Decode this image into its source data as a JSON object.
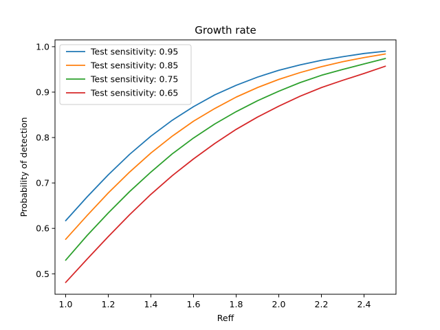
{
  "chart_data": {
    "type": "line",
    "title": "Growth rate",
    "xlabel": "Reff",
    "ylabel": "Probability of detection",
    "xlim": [
      0.95,
      2.55
    ],
    "ylim": [
      0.455,
      1.015
    ],
    "x_ticks": [
      1.0,
      1.2,
      1.4,
      1.6,
      1.8,
      2.0,
      2.2,
      2.4
    ],
    "x_tick_labels": [
      "1.0",
      "1.2",
      "1.4",
      "1.6",
      "1.8",
      "2.0",
      "2.2",
      "2.4"
    ],
    "y_ticks": [
      0.5,
      0.6,
      0.7,
      0.8,
      0.9,
      1.0
    ],
    "y_tick_labels": [
      "0.5",
      "0.6",
      "0.7",
      "0.8",
      "0.9",
      "1.0"
    ],
    "grid": false,
    "legend_position": "top-left",
    "x": [
      1.0,
      1.1,
      1.2,
      1.3,
      1.4,
      1.5,
      1.6,
      1.7,
      1.8,
      1.9,
      2.0,
      2.1,
      2.2,
      2.3,
      2.4,
      2.5
    ],
    "series": [
      {
        "name": "Test sensitivity: 0.95",
        "color": "#1f77b4",
        "values": [
          0.617,
          0.669,
          0.718,
          0.763,
          0.803,
          0.838,
          0.868,
          0.894,
          0.915,
          0.933,
          0.948,
          0.96,
          0.97,
          0.978,
          0.985,
          0.99
        ]
      },
      {
        "name": "Test sensitivity: 0.85",
        "color": "#ff7f0e",
        "values": [
          0.576,
          0.628,
          0.678,
          0.724,
          0.766,
          0.803,
          0.836,
          0.864,
          0.889,
          0.91,
          0.928,
          0.943,
          0.956,
          0.967,
          0.976,
          0.984
        ]
      },
      {
        "name": "Test sensitivity: 0.75",
        "color": "#2ca02c",
        "values": [
          0.53,
          0.584,
          0.634,
          0.681,
          0.724,
          0.764,
          0.799,
          0.83,
          0.857,
          0.881,
          0.902,
          0.921,
          0.937,
          0.95,
          0.962,
          0.974
        ]
      },
      {
        "name": "Test sensitivity: 0.65",
        "color": "#d62728",
        "values": [
          0.481,
          0.532,
          0.582,
          0.63,
          0.675,
          0.716,
          0.753,
          0.787,
          0.818,
          0.845,
          0.869,
          0.891,
          0.91,
          0.926,
          0.941,
          0.957
        ]
      }
    ]
  }
}
